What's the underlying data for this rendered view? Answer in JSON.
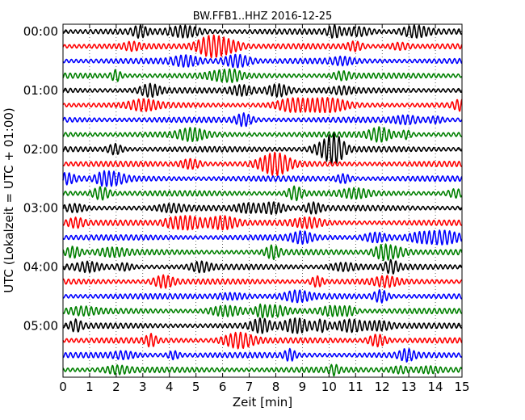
{
  "chart_data": {
    "type": "line",
    "title": "BW.FFB1..HHZ 2016-12-25",
    "xlabel": "Zeit  [min]",
    "ylabel": "UTC (Lokalzeit = UTC + 01:00)",
    "xlim": [
      0,
      15
    ],
    "x_ticks": [
      "0",
      "1",
      "2",
      "3",
      "4",
      "5",
      "6",
      "7",
      "8",
      "9",
      "10",
      "11",
      "12",
      "13",
      "14",
      "15"
    ],
    "y_tick_labels": [
      "00:00",
      "01:00",
      "02:00",
      "03:00",
      "04:00",
      "05:00"
    ],
    "row_interval_minutes": 15,
    "row_count": 24,
    "colors": [
      "#000000",
      "#ff0000",
      "#0000ff",
      "#008000"
    ],
    "grid": true,
    "legend": "none",
    "series": [
      {
        "row_start": "00:00"
      },
      {
        "row_start": "00:15"
      },
      {
        "row_start": "00:30"
      },
      {
        "row_start": "00:45"
      },
      {
        "row_start": "01:00"
      },
      {
        "row_start": "01:15"
      },
      {
        "row_start": "01:30"
      },
      {
        "row_start": "01:45"
      },
      {
        "row_start": "02:00"
      },
      {
        "row_start": "02:15"
      },
      {
        "row_start": "02:30"
      },
      {
        "row_start": "02:45"
      },
      {
        "row_start": "03:00"
      },
      {
        "row_start": "03:15"
      },
      {
        "row_start": "03:30"
      },
      {
        "row_start": "03:45"
      },
      {
        "row_start": "04:00"
      },
      {
        "row_start": "04:15"
      },
      {
        "row_start": "04:30"
      },
      {
        "row_start": "04:45"
      },
      {
        "row_start": "05:00"
      },
      {
        "row_start": "05:15"
      },
      {
        "row_start": "05:30"
      },
      {
        "row_start": "05:45"
      }
    ]
  }
}
